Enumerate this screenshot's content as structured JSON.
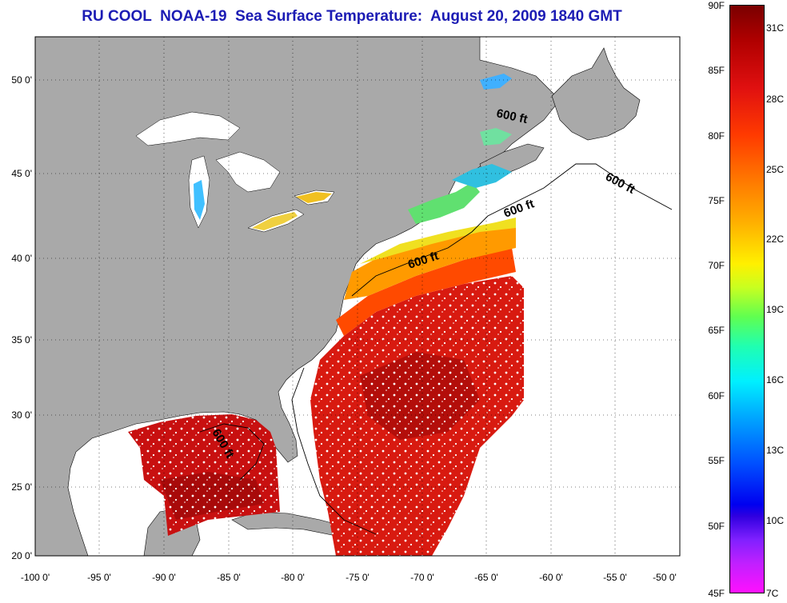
{
  "title": "RU COOL  NOAA-19  Sea Surface Temperature:  August 20, 2009 1840 GMT",
  "map": {
    "lat_labels": [
      "50 0'",
      "45 0'",
      "40 0'",
      "35 0'",
      "30 0'",
      "25 0'",
      "20 0'"
    ],
    "lon_labels": [
      "-100 0'",
      "-95 0'",
      "-90 0'",
      "-85 0'",
      "-80 0'",
      "-75 0'",
      "-70 0'",
      "-65 0'",
      "-60 0'",
      "-55 0'",
      "-50 0'"
    ],
    "lat_range": [
      20,
      52.5
    ],
    "lon_range": [
      -100,
      -50
    ],
    "contour_labels": [
      "600 ft",
      "600 ft",
      "600 ft",
      "600 ft",
      "600 ft"
    ],
    "colors": {
      "land": "#a9a9a9",
      "ocean": "#ffffff",
      "grid": "#000000"
    }
  },
  "colorbar": {
    "fahrenheit": [
      "90F",
      "85F",
      "80F",
      "75F",
      "70F",
      "65F",
      "60F",
      "55F",
      "50F",
      "45F"
    ],
    "celsius": [
      "31C",
      "28C",
      "25C",
      "22C",
      "19C",
      "16C",
      "13C",
      "10C",
      "7C"
    ]
  }
}
